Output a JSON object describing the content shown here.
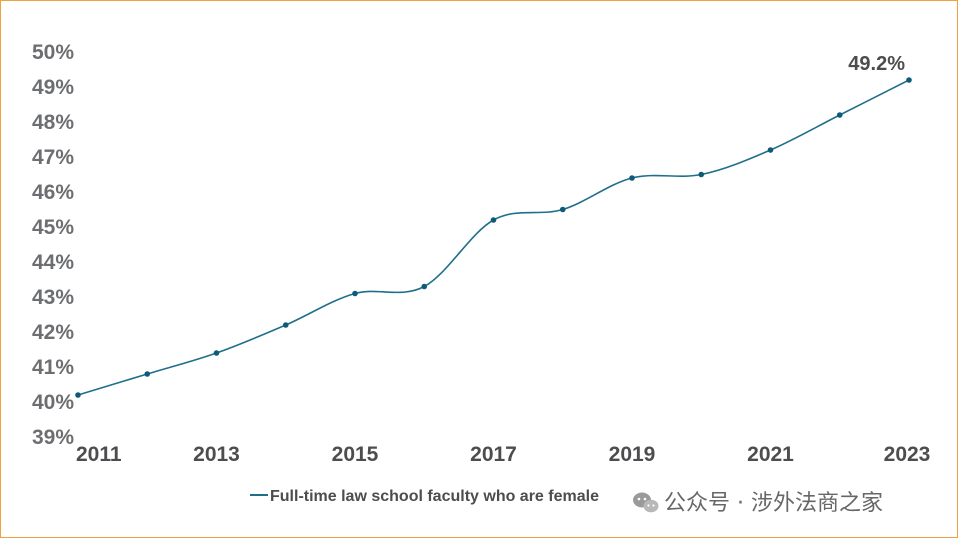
{
  "chart_data": {
    "type": "line",
    "x": [
      2011,
      2012,
      2013,
      2014,
      2015,
      2016,
      2017,
      2018,
      2019,
      2020,
      2021,
      2022,
      2023
    ],
    "x_tick_labels": [
      "2011",
      "2013",
      "2015",
      "2017",
      "2019",
      "2021",
      "2023"
    ],
    "y_tick_labels": [
      "39%",
      "40%",
      "41%",
      "42%",
      "43%",
      "44%",
      "45%",
      "46%",
      "47%",
      "48%",
      "49%",
      "50%"
    ],
    "ylim": [
      39,
      50
    ],
    "series": [
      {
        "name": "Full-time law school faculty who are female",
        "color": "#1f6f8b",
        "values": [
          40.2,
          40.8,
          41.4,
          42.2,
          43.1,
          43.3,
          45.2,
          45.5,
          46.4,
          46.5,
          47.2,
          48.2,
          49.2
        ]
      }
    ],
    "data_labels": [
      {
        "x": 2023,
        "text": "49.2%"
      }
    ],
    "legend_position": "bottom",
    "grid": false
  },
  "watermark": {
    "text": "公众号 · 涉外法商之家",
    "icon": "wechat-icon"
  },
  "colors": {
    "line": "#1f6f8b",
    "axis_text": "#6d6e71",
    "frame_border": "#f0a040"
  }
}
